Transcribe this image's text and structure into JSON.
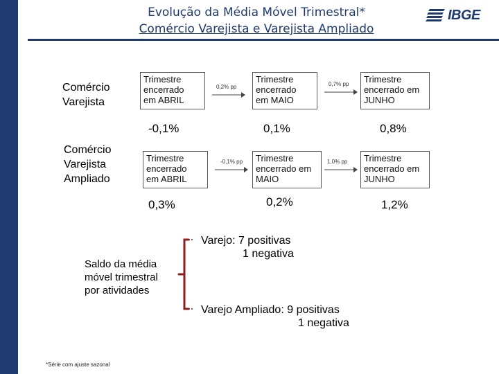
{
  "title": {
    "line1": "Evolução da Média Móvel Trimestral*",
    "line2": "Comércio Varejista e Varejista Ampliado"
  },
  "logo": {
    "text": "IBGE",
    "icon": "ibge-logo-icon",
    "color": "#1f3a6e"
  },
  "rows": [
    {
      "label_lines": [
        "Comércio",
        "Varejista"
      ],
      "boxes": [
        {
          "lines": [
            "Trimestre",
            "encerrado",
            "em ABRIL"
          ],
          "value": "-0,1%"
        },
        {
          "lines": [
            "Trimestre",
            "encerrado",
            "em MAIO"
          ],
          "value": "0,1%"
        },
        {
          "lines": [
            "Trimestre",
            "encerrado em",
            "JUNHO"
          ],
          "value": "0,8%"
        }
      ],
      "deltas": [
        "0,2% pp",
        "0,7% pp"
      ]
    },
    {
      "label_lines": [
        "Comércio",
        "Varejista",
        "Ampliado"
      ],
      "boxes": [
        {
          "lines": [
            "Trimestre",
            "encerrado",
            "em ABRIL"
          ],
          "value": "0,3%"
        },
        {
          "lines": [
            "Trimestre",
            "encerrado em",
            "MAIO"
          ],
          "value": "0,2%"
        },
        {
          "lines": [
            "Trimestre",
            "encerrado em",
            "JUNHO"
          ],
          "value": "1,2%"
        }
      ],
      "deltas": [
        "-0,1% pp",
        "1,0% pp"
      ]
    }
  ],
  "saldo": {
    "lines": [
      "Saldo da média",
      "móvel trimestral",
      "por atividades"
    ]
  },
  "varejo": {
    "line1": "Varejo: 7 positivas",
    "line2": "1 negativa"
  },
  "varejo_ampliado": {
    "line1": "Varejo Ampliado: 9 positivas",
    "line2": "1 negativa"
  },
  "footnote": "*Série com ajuste sazonal",
  "colors": {
    "sidebar": "#1f3a6e",
    "accent": "#1f3a6e"
  }
}
